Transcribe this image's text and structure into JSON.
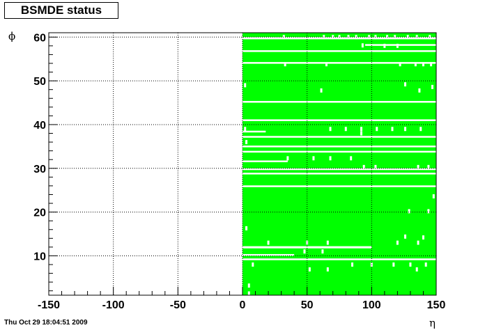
{
  "canvas": {
    "timestamp": "Thu Oct 29 18:04:51 2009"
  },
  "chart_data": {
    "type": "heatmap",
    "title": "BSMDE status",
    "xlabel": "η",
    "ylabel": "ϕ",
    "xlim": [
      -150,
      150
    ],
    "ylim": [
      1,
      61
    ],
    "xticks": [
      -150,
      -100,
      -50,
      0,
      50,
      100,
      150
    ],
    "yticks": [
      10,
      20,
      30,
      40,
      50,
      60
    ],
    "grid": true,
    "legend": "none",
    "fill_color": "#00ff00",
    "filled_x_range": [
      0,
      150
    ],
    "empty_x_range": [
      -150,
      0
    ],
    "missing_rows": [
      {
        "phi": [
          59.5,
          60.0
        ],
        "x": [
          0,
          150
        ]
      },
      {
        "phi": [
          58.0,
          58.4
        ],
        "x": [
          95,
          150
        ]
      },
      {
        "phi": [
          56.6,
          57.0
        ],
        "x": [
          0,
          150
        ]
      },
      {
        "phi": [
          53.9,
          54.3
        ],
        "x": [
          0,
          150
        ]
      },
      {
        "phi": [
          45.0,
          45.4
        ],
        "x": [
          0,
          150
        ]
      },
      {
        "phi": [
          40.8,
          41.2
        ],
        "x": [
          0,
          150
        ]
      },
      {
        "phi": [
          38.2,
          38.6
        ],
        "x": [
          0,
          18
        ]
      },
      {
        "phi": [
          37.0,
          37.4
        ],
        "x": [
          0,
          150
        ]
      },
      {
        "phi": [
          34.8,
          35.2
        ],
        "x": [
          0,
          150
        ]
      },
      {
        "phi": [
          33.6,
          34.0
        ],
        "x": [
          0,
          150
        ]
      },
      {
        "phi": [
          31.4,
          31.8
        ],
        "x": [
          0,
          35
        ]
      },
      {
        "phi": [
          29.6,
          30.0
        ],
        "x": [
          0,
          150
        ]
      },
      {
        "phi": [
          28.6,
          29.0
        ],
        "x": [
          0,
          150
        ]
      },
      {
        "phi": [
          25.7,
          26.1
        ],
        "x": [
          0,
          150
        ]
      },
      {
        "phi": [
          11.7,
          12.2
        ],
        "x": [
          0,
          100
        ]
      },
      {
        "phi": [
          10.0,
          10.4
        ],
        "x": [
          0,
          40
        ]
      },
      {
        "phi": [
          9.0,
          9.4
        ],
        "x": [
          0,
          150
        ]
      }
    ],
    "missing_cells": [
      {
        "x": 32,
        "phi": 60.0
      },
      {
        "x": 63,
        "phi": 60.0
      },
      {
        "x": 70,
        "phi": 60.0
      },
      {
        "x": 75,
        "phi": 60.0
      },
      {
        "x": 82,
        "phi": 60.0
      },
      {
        "x": 88,
        "phi": 60.0
      },
      {
        "x": 98,
        "phi": 60.0
      },
      {
        "x": 103,
        "phi": 60.0
      },
      {
        "x": 112,
        "phi": 60.0
      },
      {
        "x": 118,
        "phi": 60.0
      },
      {
        "x": 128,
        "phi": 60.0
      },
      {
        "x": 135,
        "phi": 60.0
      },
      {
        "x": 145,
        "phi": 60.0
      },
      {
        "x": 93,
        "phi": 58.1
      },
      {
        "x": 110,
        "phi": 58.0
      },
      {
        "x": 120,
        "phi": 58.0
      },
      {
        "x": 33,
        "phi": 53.8
      },
      {
        "x": 65,
        "phi": 53.8
      },
      {
        "x": 122,
        "phi": 53.8
      },
      {
        "x": 134,
        "phi": 53.8
      },
      {
        "x": 140,
        "phi": 53.8
      },
      {
        "x": 146,
        "phi": 53.8
      },
      {
        "x": 2,
        "phi": 49.0
      },
      {
        "x": 61,
        "phi": 47.8
      },
      {
        "x": 126,
        "phi": 49.2
      },
      {
        "x": 137,
        "phi": 47.8
      },
      {
        "x": 147,
        "phi": 48.6
      },
      {
        "x": 2,
        "phi": 39.0
      },
      {
        "x": 68,
        "phi": 39.0
      },
      {
        "x": 80,
        "phi": 39.0
      },
      {
        "x": 92,
        "phi": 39.0
      },
      {
        "x": 104,
        "phi": 39.0
      },
      {
        "x": 116,
        "phi": 39.0
      },
      {
        "x": 126,
        "phi": 39.0
      },
      {
        "x": 138,
        "phi": 39.0
      },
      {
        "x": 92,
        "phi": 38.0
      },
      {
        "x": 3,
        "phi": 36.0
      },
      {
        "x": 35,
        "phi": 32.3
      },
      {
        "x": 55,
        "phi": 32.3
      },
      {
        "x": 68,
        "phi": 32.3
      },
      {
        "x": 84,
        "phi": 32.3
      },
      {
        "x": 94,
        "phi": 30.3
      },
      {
        "x": 103,
        "phi": 30.3
      },
      {
        "x": 136,
        "phi": 30.3
      },
      {
        "x": 144,
        "phi": 30.3
      },
      {
        "x": 148,
        "phi": 23.6
      },
      {
        "x": 129,
        "phi": 20.2
      },
      {
        "x": 144,
        "phi": 20.2
      },
      {
        "x": 3,
        "phi": 16.3
      },
      {
        "x": 126,
        "phi": 14.4
      },
      {
        "x": 140,
        "phi": 14.2
      },
      {
        "x": 20,
        "phi": 13.0
      },
      {
        "x": 50,
        "phi": 13.0
      },
      {
        "x": 66,
        "phi": 13.0
      },
      {
        "x": 120,
        "phi": 13.0
      },
      {
        "x": 136,
        "phi": 13.0
      },
      {
        "x": 48,
        "phi": 11.0
      },
      {
        "x": 62,
        "phi": 11.0
      },
      {
        "x": 8,
        "phi": 8.0
      },
      {
        "x": 85,
        "phi": 8.0
      },
      {
        "x": 100,
        "phi": 8.0
      },
      {
        "x": 117,
        "phi": 8.0
      },
      {
        "x": 130,
        "phi": 8.0
      },
      {
        "x": 142,
        "phi": 8.0
      },
      {
        "x": 52,
        "phi": 6.9
      },
      {
        "x": 66,
        "phi": 6.9
      },
      {
        "x": 135,
        "phi": 6.9
      },
      {
        "x": 5,
        "phi": 3.2
      },
      {
        "x": 5,
        "phi": 1.4
      }
    ]
  }
}
